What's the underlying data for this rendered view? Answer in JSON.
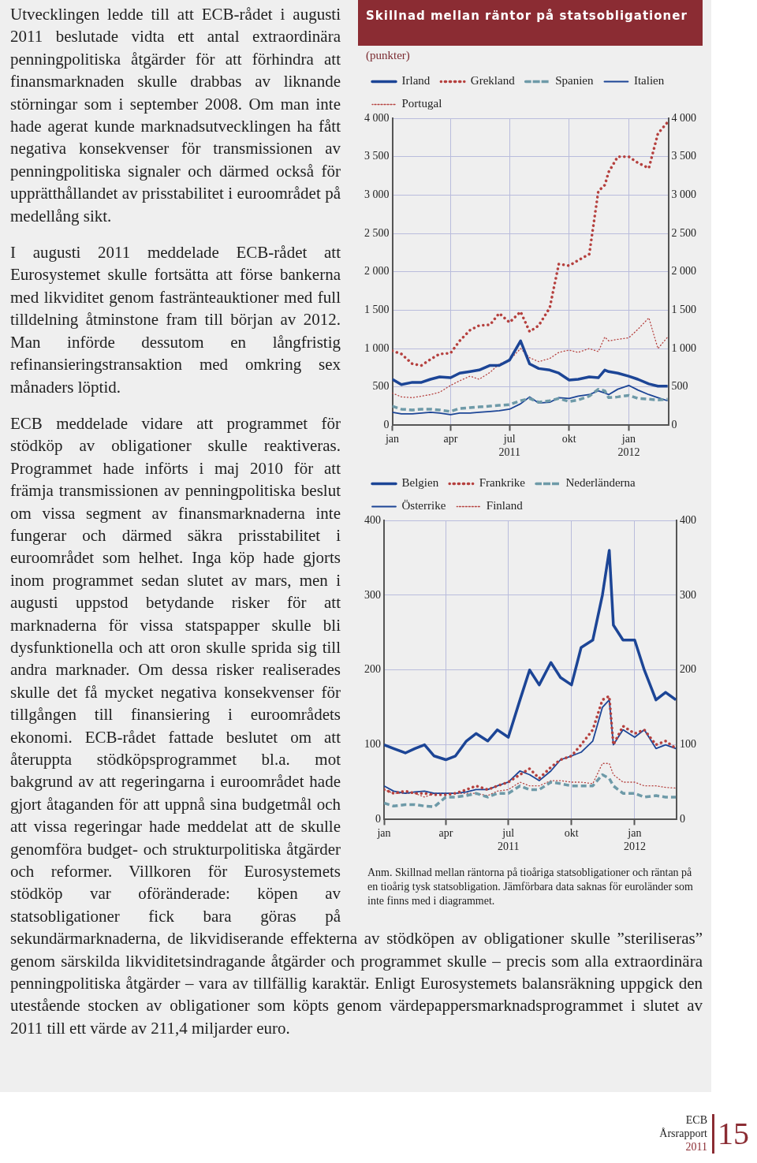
{
  "chart_data": [
    {
      "type": "line",
      "title": "Skillnad mellan räntor på statsobligationer",
      "ylabel": "(punkter)",
      "annotations": [
        "Utvecklingen ledde till att ECB-rådet i augusti 2011 beslutade vidta ett antal extraordinära penningpolitiska åtgärder för att förhindra att finansmarknaden skulle drabbas av liknande störningar som i september 2008. Om man inte hade agerat kunde marknadsutvecklingen ha fått negativa konsekvenser för transmissionen av penningpolitiska signaler och därmed också för upprätthållandet av prisstabilitet i euroområdet på medellång sikt.",
        "I augusti 2011 meddelade ECB-rådet att Eurosystemet skulle fortsätta att förse bankerna med likviditet genom fastränteauktioner med full tilldelning åtminstone fram till början av 2012. Man införde dessutom en långfristig refinansieringstransaktion med omkring sex månaders löptid.",
        "ECB meddelade vidare att programmet för stödköp av obligationer skulle reaktiveras. Programmet hade införts i maj 2010 för att främja transmissionen av penningpolitiska beslut om vissa segment av finansmarknaderna inte fungerar och därmed säkra prisstabilitet i euroområdet som helhet. Inga köp hade gjorts inom programmet sedan slutet av mars, men i augusti uppstod betydande risker för att marknaderna för vissa statspapper skulle bli dysfunktionella och att oron skulle sprida sig till andra marknader. Om dessa risker realiserades skulle det få mycket negativa konsekvenser för tillgången till finansiering i euroområdets ekonomi. ECB-rådet fattade beslutet om att återuppta stödköpsprogrammet bl.a. mot bakgrund av att regeringarna i euroområdet hade gjort åtaganden för att uppnå sina budgetmål och att vissa regeringar hade meddelat att de skulle genomföra budget- och strukturpolitiska åtgärder och reformer. Villkoren för Eurosystemets stödköp var oföränderade: köpen av statsobligationer fick bara göras på sekundärmarknaderna, de likvidiserande effekterna av stödköpen av obligationer skulle ”steriliseras” genom särskilda likviditetsindragande åtgärder och programmet skulle – precis som alla extraordinära penningpolitiska åtgärder – vara av tillfällig karaktär. Enligt Eurosystemets balansräkning uppgick den utestående stocken av obligationer som köpts genom värdepappersmarknadsprogrammet i slutet av 2011 till ett värde av 211,4 miljarder euro."
      ],
      "x": [
        "2011-01-01",
        "2011-01-15",
        "2011-02-01",
        "2011-02-15",
        "2011-03-01",
        "2011-03-15",
        "2011-04-01",
        "2011-04-15",
        "2011-05-01",
        "2011-05-15",
        "2011-06-01",
        "2011-06-15",
        "2011-07-01",
        "2011-07-18",
        "2011-08-01",
        "2011-08-15",
        "2011-09-01",
        "2011-09-15",
        "2011-10-01",
        "2011-10-15",
        "2011-11-01",
        "2011-11-15",
        "2011-11-25",
        "2011-12-01",
        "2011-12-15",
        "2012-01-01",
        "2012-01-15",
        "2012-02-01",
        "2012-02-15",
        "2012-03-01"
      ],
      "xlim": [
        "2011-01-01",
        "2012-03-02"
      ],
      "xticks": [
        {
          "value": "2011-01-01",
          "label": "jan"
        },
        {
          "value": "2011-04-01",
          "label": "apr"
        },
        {
          "value": "2011-07-01",
          "label": "jul\n2011"
        },
        {
          "value": "2011-10-01",
          "label": "okt"
        },
        {
          "value": "2012-01-01",
          "label": "jan\n2012"
        }
      ],
      "ylim": [
        0,
        4000
      ],
      "yticks": [
        0,
        500,
        {
          "value": 1000,
          "label": "1 000"
        },
        {
          "value": 1500,
          "label": "1 500"
        },
        {
          "value": 2000,
          "label": "2 000"
        },
        {
          "value": 2500,
          "label": "2 500"
        },
        {
          "value": 3000,
          "label": "3 000"
        },
        {
          "value": 3500,
          "label": "3 500"
        },
        {
          "value": 4000,
          "label": "4 000"
        }
      ],
      "y2lim": [
        0,
        4000
      ],
      "y2ticks": [
        0,
        500,
        {
          "value": 1000,
          "label": "1 000"
        },
        {
          "value": 1500,
          "label": "1 500"
        },
        {
          "value": 2000,
          "label": "2 000"
        },
        {
          "value": 2500,
          "label": "2 500"
        },
        {
          "value": 3000,
          "label": "3 000"
        },
        {
          "value": 3500,
          "label": "3 500"
        },
        {
          "value": 4000,
          "label": "4 000"
        }
      ],
      "grid": true,
      "legend": "top",
      "marker": "none",
      "series": [
        {
          "name": "Irland",
          "color": "#1c4596",
          "line_style": "solid",
          "values": [
            600,
            530,
            560,
            560,
            600,
            630,
            620,
            680,
            700,
            720,
            780,
            780,
            850,
            1100,
            800,
            740,
            720,
            680,
            590,
            600,
            630,
            620,
            720,
            700,
            680,
            640,
            600,
            540,
            510,
            510
          ]
        },
        {
          "name": "Grekland",
          "color": "#b5403e",
          "line_style": "dotted",
          "values": [
            970,
            930,
            800,
            780,
            860,
            930,
            940,
            1100,
            1240,
            1300,
            1310,
            1460,
            1340,
            1480,
            1220,
            1300,
            1530,
            2100,
            2080,
            2150,
            2230,
            3050,
            3130,
            3300,
            3500,
            3500,
            3420,
            3350,
            3800,
            3950
          ]
        },
        {
          "name": "Spanien",
          "color": "#6e9aa8",
          "line_style": "dashed",
          "values": [
            250,
            210,
            200,
            210,
            210,
            200,
            180,
            220,
            230,
            240,
            250,
            260,
            270,
            320,
            350,
            300,
            320,
            350,
            310,
            330,
            380,
            470,
            450,
            360,
            370,
            390,
            350,
            340,
            330,
            340
          ]
        },
        {
          "name": "Italien",
          "color": "#1c4596",
          "line_style": "solid",
          "values": [
            170,
            150,
            150,
            160,
            170,
            160,
            140,
            160,
            160,
            170,
            180,
            190,
            210,
            280,
            370,
            290,
            300,
            360,
            350,
            380,
            400,
            450,
            420,
            400,
            470,
            520,
            460,
            400,
            360,
            320
          ]
        },
        {
          "name": "Portugal",
          "color": "#b5403e",
          "line_style": "dotted",
          "values": [
            420,
            370,
            360,
            380,
            400,
            430,
            520,
            580,
            640,
            600,
            690,
            800,
            850,
            1000,
            880,
            830,
            870,
            950,
            980,
            950,
            1000,
            960,
            1150,
            1100,
            1120,
            1140,
            1250,
            1400,
            1000,
            1150
          ]
        }
      ]
    },
    {
      "type": "line",
      "annotations": [
        "Anm. Skillnad mellan räntorna på tioåriga statsobligationer och räntan på en tioårig tysk statsobligation. Jämförbara data saknas för euroländer som inte finns med i diagrammet.",
        "ECB",
        "Årsrapport",
        "2011",
        "15"
      ],
      "x": [
        "2011-01-01",
        "2011-01-15",
        "2011-02-01",
        "2011-02-15",
        "2011-03-01",
        "2011-03-15",
        "2011-04-01",
        "2011-04-15",
        "2011-05-01",
        "2011-05-15",
        "2011-06-01",
        "2011-06-15",
        "2011-07-01",
        "2011-07-18",
        "2011-08-01",
        "2011-08-15",
        "2011-09-01",
        "2011-09-15",
        "2011-10-01",
        "2011-10-15",
        "2011-11-01",
        "2011-11-15",
        "2011-11-25",
        "2011-12-01",
        "2011-12-15",
        "2012-01-01",
        "2012-01-15",
        "2012-02-01",
        "2012-02-15",
        "2012-03-01"
      ],
      "xlim": [
        "2011-01-01",
        "2012-03-02"
      ],
      "xticks": [
        {
          "value": "2011-01-01",
          "label": "jan"
        },
        {
          "value": "2011-04-01",
          "label": "apr"
        },
        {
          "value": "2011-07-01",
          "label": "jul\n2011"
        },
        {
          "value": "2011-10-01",
          "label": "okt"
        },
        {
          "value": "2012-01-01",
          "label": "jan\n2012"
        }
      ],
      "ylim": [
        0,
        400
      ],
      "yticks": [
        0,
        100,
        200,
        300,
        400
      ],
      "y2lim": [
        0,
        400
      ],
      "y2ticks": [
        0,
        100,
        200,
        300,
        400
      ],
      "grid": true,
      "legend": "top",
      "marker": "none",
      "series": [
        {
          "name": "Belgien",
          "color": "#1c4596",
          "line_style": "solid",
          "values": [
            100,
            95,
            89,
            95,
            100,
            85,
            80,
            85,
            105,
            115,
            105,
            120,
            110,
            160,
            200,
            180,
            210,
            190,
            180,
            230,
            240,
            300,
            360,
            260,
            240,
            240,
            200,
            160,
            170,
            160
          ]
        },
        {
          "name": "Frankrike",
          "color": "#b5403e",
          "line_style": "dotted",
          "values": [
            40,
            35,
            38,
            35,
            35,
            33,
            33,
            35,
            40,
            45,
            40,
            45,
            50,
            60,
            68,
            55,
            70,
            80,
            85,
            100,
            120,
            160,
            165,
            100,
            125,
            115,
            120,
            100,
            105,
            95
          ]
        },
        {
          "name": "Nederländerna",
          "color": "#6e9aa8",
          "line_style": "dashed",
          "values": [
            22,
            18,
            20,
            20,
            18,
            17,
            30,
            30,
            32,
            35,
            30,
            35,
            35,
            45,
            40,
            40,
            50,
            48,
            45,
            45,
            45,
            60,
            55,
            45,
            35,
            35,
            30,
            32,
            30,
            30
          ]
        },
        {
          "name": "Österrike",
          "color": "#1c4596",
          "line_style": "solid",
          "values": [
            45,
            38,
            35,
            37,
            38,
            35,
            35,
            35,
            37,
            40,
            40,
            45,
            50,
            65,
            60,
            52,
            65,
            80,
            85,
            90,
            105,
            150,
            160,
            100,
            120,
            110,
            120,
            95,
            100,
            95
          ]
        },
        {
          "name": "Finland",
          "color": "#b5403e",
          "line_style": "dotted",
          "values": [
            40,
            35,
            35,
            35,
            30,
            35,
            35,
            35,
            35,
            35,
            32,
            38,
            40,
            50,
            45,
            45,
            52,
            52,
            50,
            50,
            48,
            75,
            75,
            60,
            50,
            50,
            45,
            45,
            43,
            42
          ]
        }
      ]
    }
  ]
}
